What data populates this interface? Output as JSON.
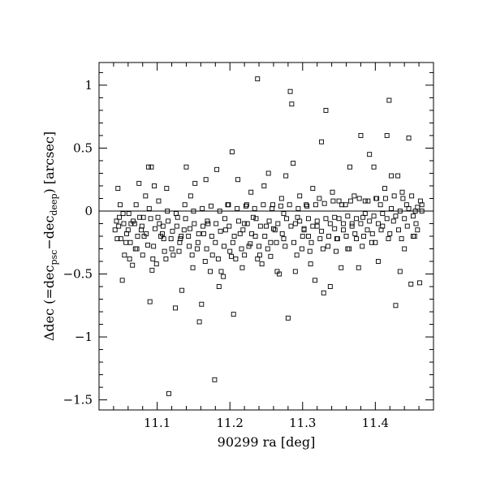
{
  "chart_data": {
    "type": "scatter",
    "title": "",
    "xlabel": "90299 ra [deg]",
    "ylabel": {
      "prefix": "Δdec (=dec",
      "sub1": "psc",
      "mid": "−dec",
      "sub2": "deep",
      "suffix": ") [arcsec]"
    },
    "xlim": [
      11.02,
      11.48
    ],
    "ylim": [
      -1.58,
      1.18
    ],
    "x_ticks": [
      11.1,
      11.2,
      11.3,
      11.4
    ],
    "x_tick_labels": [
      "11.1",
      "11.2",
      "11.3",
      "11.4"
    ],
    "y_ticks": [
      -1.5,
      -1,
      -0.5,
      0,
      0.5,
      1
    ],
    "y_tick_labels": [
      "−1.5",
      "−1",
      "−0.5",
      "0",
      "0.5",
      "1"
    ],
    "zero_line": 0,
    "marker": "open-square",
    "points": [
      [
        11.044,
        -0.08
      ],
      [
        11.047,
        -0.12
      ],
      [
        11.05,
        -0.22
      ],
      [
        11.052,
        -0.55
      ],
      [
        11.055,
        -0.35
      ],
      [
        11.058,
        -0.18
      ],
      [
        11.046,
        0.18
      ],
      [
        11.049,
        0.05
      ],
      [
        11.061,
        -0.02
      ],
      [
        11.063,
        -0.25
      ],
      [
        11.066,
        -0.43
      ],
      [
        11.069,
        -0.1
      ],
      [
        11.072,
        -0.3
      ],
      [
        11.075,
        0.22
      ],
      [
        11.078,
        -0.15
      ],
      [
        11.081,
        -0.05
      ],
      [
        11.084,
        0.12
      ],
      [
        11.087,
        -0.27
      ],
      [
        11.09,
        -0.72
      ],
      [
        11.093,
        -0.47
      ],
      [
        11.096,
        0.2
      ],
      [
        11.099,
        -0.42
      ],
      [
        11.102,
        0.08
      ],
      [
        11.105,
        -0.2
      ],
      [
        11.108,
        -0.12
      ],
      [
        11.088,
        0.35
      ],
      [
        11.092,
        0.35
      ],
      [
        11.11,
        -0.32
      ],
      [
        11.113,
        0.18
      ],
      [
        11.116,
        -1.45
      ],
      [
        11.119,
        -0.22
      ],
      [
        11.122,
        -0.35
      ],
      [
        11.125,
        -0.77
      ],
      [
        11.128,
        -0.05
      ],
      [
        11.131,
        -0.25
      ],
      [
        11.134,
        -0.63
      ],
      [
        11.137,
        -0.15
      ],
      [
        11.14,
        0.35
      ],
      [
        11.143,
        -0.2
      ],
      [
        11.146,
        0.12
      ],
      [
        11.149,
        -0.45
      ],
      [
        11.152,
        0.22
      ],
      [
        11.155,
        -0.3
      ],
      [
        11.158,
        -0.88
      ],
      [
        11.161,
        -0.74
      ],
      [
        11.164,
        -0.18
      ],
      [
        11.167,
        0.25
      ],
      [
        11.17,
        -0.1
      ],
      [
        11.173,
        -0.48
      ],
      [
        11.176,
        -0.35
      ],
      [
        11.179,
        -1.34
      ],
      [
        11.182,
        0.33
      ],
      [
        11.185,
        -0.6
      ],
      [
        11.188,
        -0.48
      ],
      [
        11.191,
        -0.52
      ],
      [
        11.194,
        -0.15
      ],
      [
        11.197,
        0.05
      ],
      [
        11.2,
        -0.32
      ],
      [
        11.203,
        0.47
      ],
      [
        11.205,
        -0.82
      ],
      [
        11.208,
        -0.38
      ],
      [
        11.211,
        0.25
      ],
      [
        11.214,
        -0.18
      ],
      [
        11.217,
        -0.45
      ],
      [
        11.22,
        -0.1
      ],
      [
        11.223,
        0.05
      ],
      [
        11.226,
        -0.28
      ],
      [
        11.229,
        0.15
      ],
      [
        11.232,
        -0.05
      ],
      [
        11.235,
        -0.2
      ],
      [
        11.238,
        1.05
      ],
      [
        11.241,
        -0.35
      ],
      [
        11.244,
        -0.42
      ],
      [
        11.247,
        0.2
      ],
      [
        11.25,
        -0.12
      ],
      [
        11.253,
        0.3
      ],
      [
        11.256,
        -0.25
      ],
      [
        11.259,
        0.05
      ],
      [
        11.262,
        -0.15
      ],
      [
        11.265,
        -0.48
      ],
      [
        11.268,
        -0.5
      ],
      [
        11.271,
        0.1
      ],
      [
        11.274,
        -0.22
      ],
      [
        11.277,
        0.28
      ],
      [
        11.28,
        -0.85
      ],
      [
        11.283,
        0.95
      ],
      [
        11.285,
        0.85
      ],
      [
        11.287,
        0.38
      ],
      [
        11.29,
        -0.48
      ],
      [
        11.293,
        -0.05
      ],
      [
        11.296,
        0.12
      ],
      [
        11.299,
        -0.3
      ],
      [
        11.302,
        -0.15
      ],
      [
        11.305,
        0.05
      ],
      [
        11.308,
        -0.2
      ],
      [
        11.311,
        -0.42
      ],
      [
        11.314,
        0.18
      ],
      [
        11.317,
        -0.55
      ],
      [
        11.32,
        -0.12
      ],
      [
        11.323,
        0.1
      ],
      [
        11.326,
        0.55
      ],
      [
        11.329,
        -0.65
      ],
      [
        11.332,
        0.8
      ],
      [
        11.335,
        -0.28
      ],
      [
        11.338,
        -0.6
      ],
      [
        11.341,
        0.15
      ],
      [
        11.344,
        -0.05
      ],
      [
        11.347,
        -0.22
      ],
      [
        11.35,
        0.08
      ],
      [
        11.353,
        -0.45
      ],
      [
        11.356,
        -0.15
      ],
      [
        11.359,
        0.05
      ],
      [
        11.362,
        -0.3
      ],
      [
        11.365,
        0.35
      ],
      [
        11.368,
        -0.1
      ],
      [
        11.371,
        0.12
      ],
      [
        11.374,
        -0.22
      ],
      [
        11.377,
        -0.45
      ],
      [
        11.38,
        0.6
      ],
      [
        11.383,
        -0.05
      ],
      [
        11.386,
        0.08
      ],
      [
        11.389,
        -0.15
      ],
      [
        11.392,
        0.45
      ],
      [
        11.395,
        -0.25
      ],
      [
        11.398,
        0.35
      ],
      [
        11.401,
        0.1
      ],
      [
        11.404,
        -0.4
      ],
      [
        11.407,
        0.05
      ],
      [
        11.41,
        -0.12
      ],
      [
        11.413,
        0.18
      ],
      [
        11.416,
        0.6
      ],
      [
        11.419,
        0.88
      ],
      [
        11.422,
        0.28
      ],
      [
        11.425,
        -0.08
      ],
      [
        11.428,
        -0.75
      ],
      [
        11.431,
        0.28
      ],
      [
        11.434,
        -0.48
      ],
      [
        11.437,
        0.15
      ],
      [
        11.44,
        -0.3
      ],
      [
        11.443,
        0.05
      ],
      [
        11.446,
        0.58
      ],
      [
        11.449,
        -0.58
      ],
      [
        11.452,
        -0.2
      ],
      [
        11.455,
        0.0
      ],
      [
        11.458,
        -0.15
      ],
      [
        11.461,
        -0.57
      ],
      [
        11.464,
        0.05
      ],
      [
        11.054,
        -0.1
      ],
      [
        11.06,
        -0.15
      ],
      [
        11.067,
        -0.08
      ],
      [
        11.073,
        -0.2
      ],
      [
        11.079,
        -0.12
      ],
      [
        11.085,
        -0.18
      ],
      [
        11.091,
        -0.06
      ],
      [
        11.097,
        -0.14
      ],
      [
        11.103,
        -0.1
      ],
      [
        11.109,
        -0.22
      ],
      [
        11.115,
        -0.08
      ],
      [
        11.121,
        -0.16
      ],
      [
        11.127,
        -0.12
      ],
      [
        11.133,
        -0.2
      ],
      [
        11.139,
        -0.06
      ],
      [
        11.145,
        -0.14
      ],
      [
        11.151,
        -0.1
      ],
      [
        11.157,
        -0.18
      ],
      [
        11.163,
        -0.12
      ],
      [
        11.169,
        -0.08
      ],
      [
        11.175,
        -0.2
      ],
      [
        11.181,
        -0.1
      ],
      [
        11.187,
        -0.16
      ],
      [
        11.193,
        -0.06
      ],
      [
        11.199,
        -0.12
      ],
      [
        11.206,
        -0.2
      ],
      [
        11.212,
        -0.08
      ],
      [
        11.218,
        -0.15
      ],
      [
        11.224,
        -0.1
      ],
      [
        11.23,
        -0.18
      ],
      [
        11.236,
        -0.06
      ],
      [
        11.242,
        -0.12
      ],
      [
        11.248,
        -0.2
      ],
      [
        11.254,
        -0.08
      ],
      [
        11.26,
        -0.14
      ],
      [
        11.266,
        -0.1
      ],
      [
        11.272,
        -0.18
      ],
      [
        11.278,
        -0.06
      ],
      [
        11.284,
        -0.12
      ],
      [
        11.29,
        -0.1
      ],
      [
        11.296,
        -0.08
      ],
      [
        11.302,
        -0.14
      ],
      [
        11.308,
        -0.06
      ],
      [
        11.314,
        -0.12
      ],
      [
        11.32,
        -0.08
      ],
      [
        11.326,
        -0.16
      ],
      [
        11.332,
        -0.06
      ],
      [
        11.338,
        -0.1
      ],
      [
        11.344,
        -0.14
      ],
      [
        11.35,
        -0.06
      ],
      [
        11.356,
        -0.1
      ],
      [
        11.362,
        -0.04
      ],
      [
        11.368,
        -0.12
      ],
      [
        11.374,
        -0.06
      ],
      [
        11.38,
        -0.1
      ],
      [
        11.386,
        -0.02
      ],
      [
        11.392,
        -0.08
      ],
      [
        11.398,
        -0.04
      ],
      [
        11.404,
        -0.1
      ],
      [
        11.41,
        -0.02
      ],
      [
        11.416,
        -0.06
      ],
      [
        11.422,
        0.02
      ],
      [
        11.428,
        -0.04
      ],
      [
        11.434,
        0.0
      ],
      [
        11.44,
        -0.06
      ],
      [
        11.446,
        0.02
      ],
      [
        11.452,
        -0.04
      ],
      [
        11.458,
        0.03
      ],
      [
        11.464,
        0.0
      ],
      [
        11.042,
        -0.15
      ],
      [
        11.048,
        -0.05
      ],
      [
        11.057,
        -0.25
      ],
      [
        11.064,
        -0.1
      ],
      [
        11.07,
        -0.3
      ],
      [
        11.076,
        -0.05
      ],
      [
        11.082,
        -0.2
      ],
      [
        11.089,
        0.02
      ],
      [
        11.095,
        -0.28
      ],
      [
        11.101,
        -0.05
      ],
      [
        11.107,
        -0.18
      ],
      [
        11.114,
        0.0
      ],
      [
        11.12,
        -0.3
      ],
      [
        11.126,
        -0.02
      ],
      [
        11.132,
        -0.22
      ],
      [
        11.138,
        0.05
      ],
      [
        11.144,
        -0.28
      ],
      [
        11.15,
        0.0
      ],
      [
        11.156,
        -0.25
      ],
      [
        11.162,
        0.02
      ],
      [
        11.168,
        -0.3
      ],
      [
        11.174,
        0.04
      ],
      [
        11.18,
        -0.25
      ],
      [
        11.186,
        0.0
      ],
      [
        11.192,
        -0.28
      ],
      [
        11.198,
        0.05
      ],
      [
        11.204,
        -0.25
      ],
      [
        11.21,
        0.02
      ],
      [
        11.216,
        -0.3
      ],
      [
        11.222,
        0.04
      ],
      [
        11.228,
        -0.26
      ],
      [
        11.234,
        0.02
      ],
      [
        11.24,
        -0.28
      ],
      [
        11.246,
        0.05
      ],
      [
        11.252,
        -0.3
      ],
      [
        11.258,
        0.02
      ],
      [
        11.264,
        -0.25
      ],
      [
        11.27,
        0.04
      ],
      [
        11.276,
        -0.28
      ],
      [
        11.282,
        0.05
      ],
      [
        11.288,
        -0.25
      ],
      [
        11.294,
        0.02
      ],
      [
        11.3,
        -0.2
      ],
      [
        11.306,
        0.04
      ],
      [
        11.312,
        -0.25
      ],
      [
        11.318,
        0.05
      ],
      [
        11.324,
        -0.22
      ],
      [
        11.33,
        0.06
      ],
      [
        11.336,
        -0.2
      ],
      [
        11.342,
        0.08
      ],
      [
        11.348,
        -0.22
      ],
      [
        11.354,
        0.05
      ],
      [
        11.36,
        -0.2
      ],
      [
        11.366,
        0.08
      ],
      [
        11.372,
        -0.18
      ],
      [
        11.378,
        0.1
      ],
      [
        11.384,
        -0.2
      ],
      [
        11.39,
        0.08
      ],
      [
        11.396,
        -0.18
      ],
      [
        11.402,
        0.1
      ],
      [
        11.408,
        -0.15
      ],
      [
        11.414,
        0.1
      ],
      [
        11.42,
        -0.18
      ],
      [
        11.426,
        0.12
      ],
      [
        11.432,
        -0.15
      ],
      [
        11.438,
        0.1
      ],
      [
        11.444,
        -0.12
      ],
      [
        11.45,
        0.12
      ],
      [
        11.456,
        -0.1
      ],
      [
        11.462,
        0.08
      ],
      [
        11.045,
        -0.22
      ],
      [
        11.053,
        -0.02
      ],
      [
        11.062,
        -0.38
      ],
      [
        11.071,
        0.05
      ],
      [
        11.08,
        -0.35
      ],
      [
        11.094,
        -0.38
      ],
      [
        11.112,
        -0.38
      ],
      [
        11.13,
        -0.32
      ],
      [
        11.148,
        -0.35
      ],
      [
        11.166,
        -0.4
      ],
      [
        11.184,
        -0.38
      ],
      [
        11.202,
        -0.36
      ],
      [
        11.22,
        -0.35
      ],
      [
        11.238,
        -0.38
      ],
      [
        11.256,
        -0.36
      ],
      [
        11.274,
        -0.02
      ],
      [
        11.292,
        -0.35
      ],
      [
        11.31,
        -0.32
      ],
      [
        11.328,
        -0.3
      ],
      [
        11.346,
        -0.32
      ],
      [
        11.364,
        -0.3
      ],
      [
        11.382,
        -0.28
      ],
      [
        11.4,
        -0.25
      ],
      [
        11.418,
        -0.22
      ],
      [
        11.436,
        -0.22
      ],
      [
        11.454,
        -0.2
      ]
    ]
  }
}
